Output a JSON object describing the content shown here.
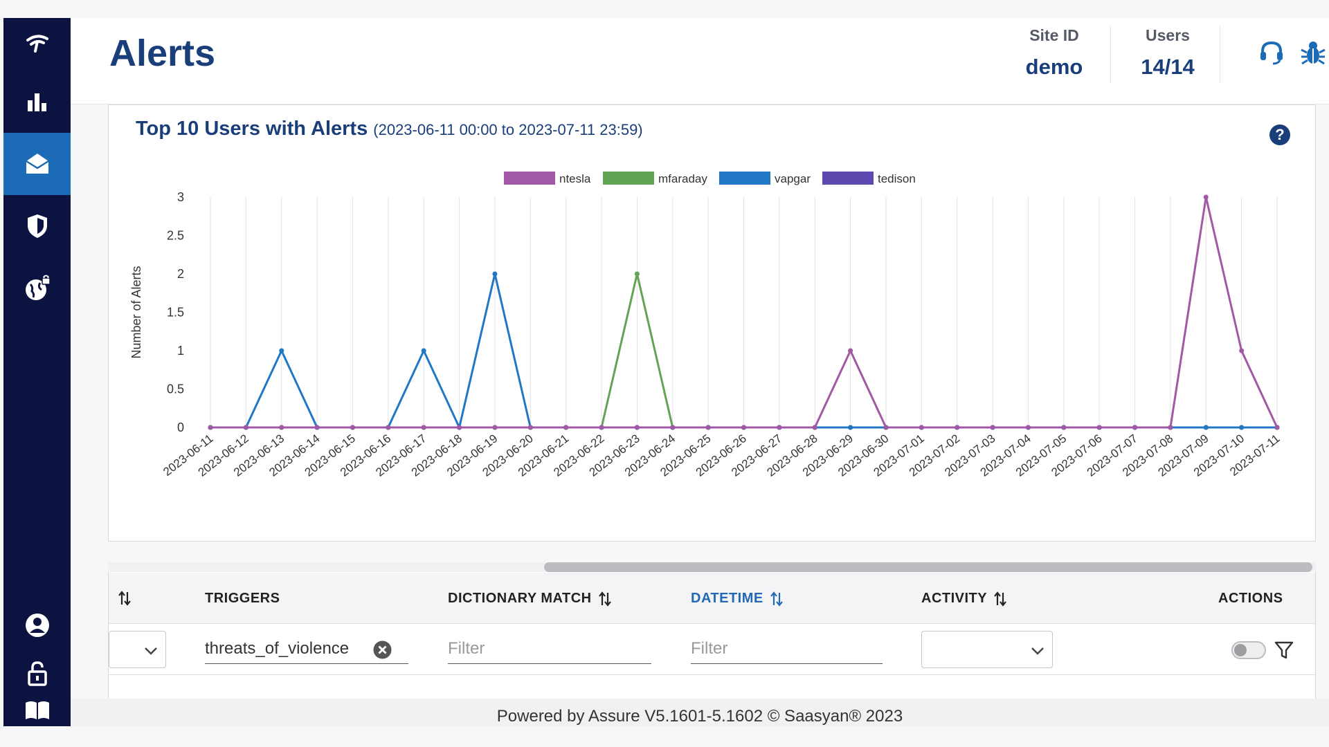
{
  "sidebar": {
    "items": [
      {
        "name": "logo",
        "icon": "wifi-logo-icon"
      },
      {
        "name": "dashboard",
        "icon": "bar-chart-icon"
      },
      {
        "name": "alerts",
        "icon": "envelope-open-icon",
        "active": true
      },
      {
        "name": "security",
        "icon": "shield-icon"
      },
      {
        "name": "web",
        "icon": "globe-lock-icon"
      },
      {
        "name": "profile",
        "icon": "user-circle-icon"
      },
      {
        "name": "lock",
        "icon": "lock-icon"
      },
      {
        "name": "docs",
        "icon": "book-icon"
      }
    ]
  },
  "header": {
    "title": "Alerts",
    "site_id_label": "Site ID",
    "site_id_value": "demo",
    "users_label": "Users",
    "users_value": "14/14",
    "icons": [
      "support-headset-icon",
      "bug-icon"
    ]
  },
  "chart": {
    "title": "Top 10 Users with Alerts",
    "range": "(2023-06-11 00:00 to 2023-07-11 23:59)",
    "help": "?"
  },
  "chart_data": {
    "type": "line",
    "ylabel": "Number of Alerts",
    "xlabel": "",
    "ylim": [
      0,
      3
    ],
    "yticks": [
      0,
      0.5,
      1,
      1.5,
      2,
      2.5,
      3
    ],
    "grid": "vertical",
    "legend": "top-center",
    "categories": [
      "2023-06-11",
      "2023-06-12",
      "2023-06-13",
      "2023-06-14",
      "2023-06-15",
      "2023-06-16",
      "2023-06-17",
      "2023-06-18",
      "2023-06-19",
      "2023-06-20",
      "2023-06-21",
      "2023-06-22",
      "2023-06-23",
      "2023-06-24",
      "2023-06-25",
      "2023-06-26",
      "2023-06-27",
      "2023-06-28",
      "2023-06-29",
      "2023-06-30",
      "2023-07-01",
      "2023-07-02",
      "2023-07-03",
      "2023-07-04",
      "2023-07-05",
      "2023-07-06",
      "2023-07-07",
      "2023-07-08",
      "2023-07-09",
      "2023-07-10",
      "2023-07-11"
    ],
    "series": [
      {
        "name": "ntesla",
        "color": "#a158a5",
        "values": [
          0,
          0,
          0,
          0,
          0,
          0,
          0,
          0,
          0,
          0,
          0,
          0,
          0,
          0,
          0,
          0,
          0,
          0,
          1,
          0,
          0,
          0,
          0,
          0,
          0,
          0,
          0,
          0,
          3,
          1,
          0
        ]
      },
      {
        "name": "mfaraday",
        "color": "#62a354",
        "values": [
          0,
          0,
          0,
          0,
          0,
          0,
          0,
          0,
          0,
          0,
          0,
          0,
          2,
          0,
          0,
          0,
          0,
          0,
          0,
          0,
          0,
          0,
          0,
          0,
          0,
          0,
          0,
          0,
          0,
          0,
          0
        ]
      },
      {
        "name": "vapgar",
        "color": "#2078c4",
        "values": [
          0,
          0,
          1,
          0,
          0,
          0,
          1,
          0,
          2,
          0,
          0,
          0,
          0,
          0,
          0,
          0,
          0,
          0,
          0,
          0,
          0,
          0,
          0,
          0,
          0,
          0,
          0,
          0,
          0,
          0,
          0
        ]
      },
      {
        "name": "tedison",
        "color": "#5d48b0",
        "values": [
          0,
          0,
          0,
          0,
          0,
          0,
          0,
          0,
          0,
          0,
          0,
          0,
          0,
          0,
          0,
          0,
          0,
          0,
          0,
          0,
          0,
          0,
          0,
          0,
          0,
          0,
          0,
          0,
          0,
          0,
          0
        ]
      }
    ]
  },
  "table": {
    "columns": [
      "TRIGGERS",
      "DICTIONARY MATCH",
      "DATETIME",
      "ACTIVITY",
      "ACTIONS"
    ],
    "filters": {
      "triggers_value": "threats_of_violence",
      "dictionary_placeholder": "Filter",
      "datetime_placeholder": "Filter"
    }
  },
  "footer": {
    "text": "Powered by Assure V5.1601-5.1602 © Saasyan® 2023"
  }
}
